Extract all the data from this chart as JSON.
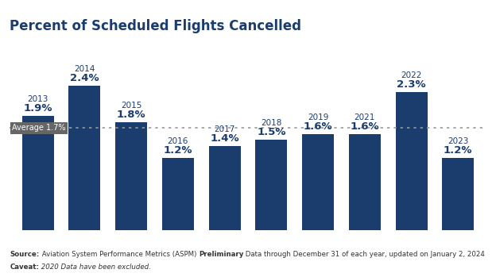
{
  "title": "Percent of Scheduled Flights Cancelled",
  "categories": [
    "2013",
    "2014",
    "2015",
    "2016",
    "2017",
    "2018",
    "2019",
    "2021",
    "2022",
    "2023"
  ],
  "values": [
    1.9,
    2.4,
    1.8,
    1.2,
    1.4,
    1.5,
    1.6,
    1.6,
    2.3,
    1.2
  ],
  "bar_color": "#1b3d6e",
  "average": 1.7,
  "average_label": "Average 1.7%",
  "average_line_color": "#999999",
  "average_label_bg": "#666666",
  "average_label_text_color": "#ffffff",
  "title_color": "#1b3d6e",
  "label_color": "#1b3d6e",
  "background_color": "#ffffff",
  "source_bold": "Source:",
  "source_regular": " Aviation System Performance Metrics (ASPM) ",
  "source_bold2": "Preliminary",
  "source_rest": " Data through December 31 of each year, updated on January 2, 2024",
  "caveat_bold": "Caveat:",
  "caveat_rest": " 2020 Data have been excluded.",
  "title_fontsize": 12,
  "value_fontsize": 9.5,
  "year_fontsize": 7.5,
  "avg_fontsize": 7,
  "ylim": [
    0,
    3.0
  ],
  "source_fontsize": 6.2
}
